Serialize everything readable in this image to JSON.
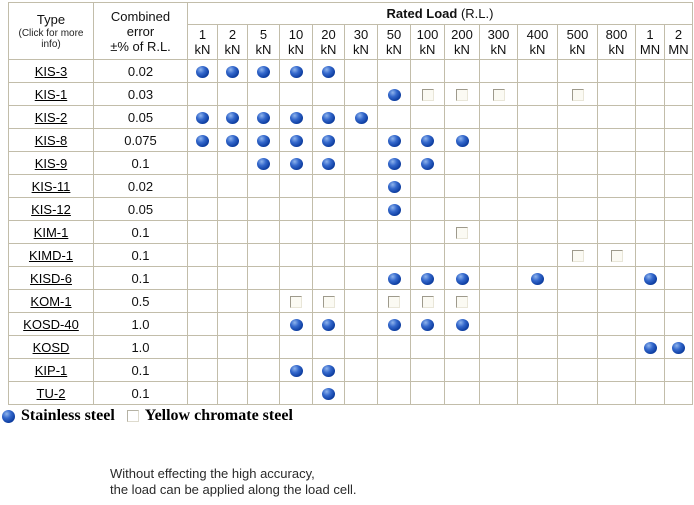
{
  "header": {
    "type_title": "Type",
    "type_subtitle": "(Click for more info)",
    "error_lines": [
      "Combined",
      "error",
      "±% of R.L."
    ],
    "rated_load_bold": "Rated Load",
    "rated_load_normal": "(R.L.)",
    "load_columns": [
      {
        "value": "1",
        "unit": "kN"
      },
      {
        "value": "2",
        "unit": "kN"
      },
      {
        "value": "5",
        "unit": "kN"
      },
      {
        "value": "10",
        "unit": "kN"
      },
      {
        "value": "20",
        "unit": "kN"
      },
      {
        "value": "30",
        "unit": "kN"
      },
      {
        "value": "50",
        "unit": "kN"
      },
      {
        "value": "100",
        "unit": "kN"
      },
      {
        "value": "200",
        "unit": "kN"
      },
      {
        "value": "300",
        "unit": "kN"
      },
      {
        "value": "400",
        "unit": "kN"
      },
      {
        "value": "500",
        "unit": "kN"
      },
      {
        "value": "800",
        "unit": "kN"
      },
      {
        "value": "1",
        "unit": "MN"
      },
      {
        "value": "2",
        "unit": "MN"
      }
    ]
  },
  "rows": [
    {
      "type": "KIS-3",
      "error": "0.02",
      "marks": [
        "s",
        "s",
        "s",
        "s",
        "s",
        "",
        "",
        "",
        "",
        "",
        "",
        "",
        "",
        "",
        ""
      ]
    },
    {
      "type": "KIS-1",
      "error": "0.03",
      "marks": [
        "",
        "",
        "",
        "",
        "",
        "",
        "s",
        "y",
        "y",
        "y",
        "",
        "y",
        "",
        "",
        ""
      ]
    },
    {
      "type": "KIS-2",
      "error": "0.05",
      "marks": [
        "s",
        "s",
        "s",
        "s",
        "s",
        "s",
        "",
        "",
        "",
        "",
        "",
        "",
        "",
        "",
        ""
      ]
    },
    {
      "type": "KIS-8",
      "error": "0.075",
      "marks": [
        "s",
        "s",
        "s",
        "s",
        "s",
        "",
        "s",
        "s",
        "s",
        "",
        "",
        "",
        "",
        "",
        ""
      ]
    },
    {
      "type": "KIS-9",
      "error": "0.1",
      "marks": [
        "",
        "",
        "s",
        "s",
        "s",
        "",
        "s",
        "s",
        "",
        "",
        "",
        "",
        "",
        "",
        ""
      ]
    },
    {
      "type": "KIS-11",
      "error": "0.02",
      "marks": [
        "",
        "",
        "",
        "",
        "",
        "",
        "s",
        "",
        "",
        "",
        "",
        "",
        "",
        "",
        ""
      ]
    },
    {
      "type": "KIS-12",
      "error": "0.05",
      "marks": [
        "",
        "",
        "",
        "",
        "",
        "",
        "s",
        "",
        "",
        "",
        "",
        "",
        "",
        "",
        ""
      ]
    },
    {
      "type": "KIM-1",
      "error": "0.1",
      "marks": [
        "",
        "",
        "",
        "",
        "",
        "",
        "",
        "",
        "y",
        "",
        "",
        "",
        "",
        "",
        ""
      ]
    },
    {
      "type": "KIMD-1",
      "error": "0.1",
      "marks": [
        "",
        "",
        "",
        "",
        "",
        "",
        "",
        "",
        "",
        "",
        "",
        "y",
        "y",
        "",
        ""
      ]
    },
    {
      "type": "KISD-6",
      "error": "0.1",
      "marks": [
        "",
        "",
        "",
        "",
        "",
        "",
        "s",
        "s",
        "s",
        "",
        "s",
        "",
        "",
        "s",
        ""
      ]
    },
    {
      "type": "KOM-1",
      "error": "0.5",
      "marks": [
        "",
        "",
        "",
        "y",
        "y",
        "",
        "y",
        "y",
        "y",
        "",
        "",
        "",
        "",
        "",
        ""
      ]
    },
    {
      "type": "KOSD-40",
      "error": "1.0",
      "marks": [
        "",
        "",
        "",
        "s",
        "s",
        "",
        "s",
        "s",
        "s",
        "",
        "",
        "",
        "",
        "",
        ""
      ]
    },
    {
      "type": "KOSD",
      "error": "1.0",
      "marks": [
        "",
        "",
        "",
        "",
        "",
        "",
        "",
        "",
        "",
        "",
        "",
        "",
        "",
        "s",
        "s"
      ]
    },
    {
      "type": "KIP-1",
      "error": "0.1",
      "marks": [
        "",
        "",
        "",
        "s",
        "s",
        "",
        "",
        "",
        "",
        "",
        "",
        "",
        "",
        "",
        ""
      ]
    },
    {
      "type": "TU-2",
      "error": "0.1",
      "marks": [
        "",
        "",
        "",
        "",
        "s",
        "",
        "",
        "",
        "",
        "",
        "",
        "",
        "",
        "",
        ""
      ]
    }
  ],
  "legend": {
    "stainless_label": "Stainless steel",
    "yellow_label": "Yellow chromate steel"
  },
  "note_lines": [
    "Without effecting the high accuracy,",
    "the load can be applied along the load cell."
  ],
  "colors": {
    "ball_blue": "#1663d6",
    "table_border": "#c2bdaa",
    "background": "#ffffff"
  }
}
